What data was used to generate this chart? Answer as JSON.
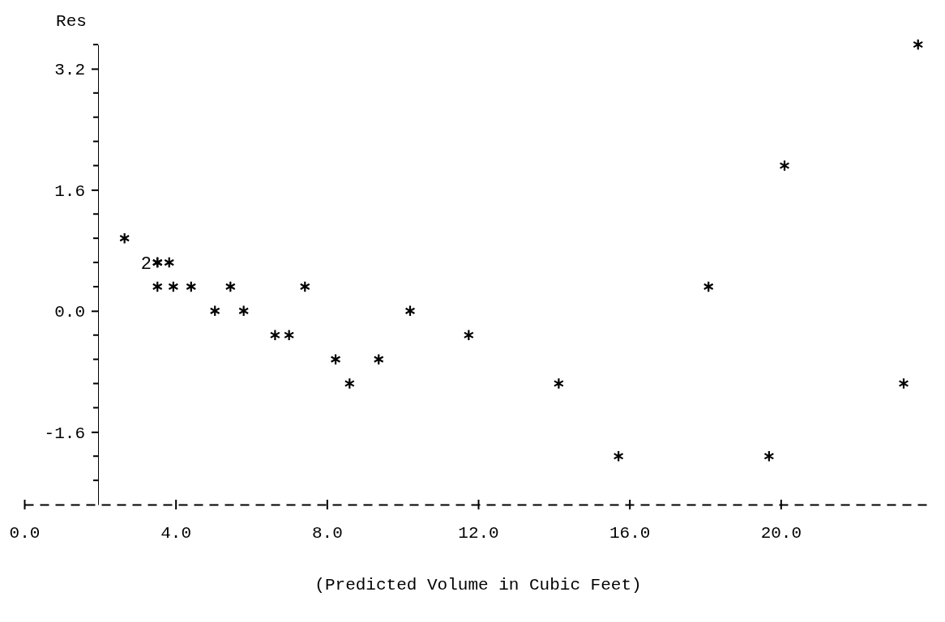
{
  "chart_data": {
    "type": "scatter",
    "ylabel": "Res",
    "xlabel": "(Predicted Volume in Cubic Feet)",
    "color": "#000000",
    "marker": "cross",
    "x": [
      2.65,
      3.52,
      3.52,
      3.83,
      3.52,
      3.94,
      4.41,
      5.45,
      7.42,
      18.09,
      5.04,
      5.8,
      10.2,
      6.63,
      7.0,
      11.75,
      8.23,
      9.37,
      8.6,
      14.13,
      23.25,
      15.71,
      19.69,
      20.1,
      23.63
    ],
    "values": [
      0.96,
      0.64,
      0.64,
      0.64,
      0.32,
      0.32,
      0.32,
      0.32,
      0.32,
      0.32,
      0,
      0,
      0,
      -0.32,
      -0.32,
      -0.32,
      -0.64,
      -0.64,
      -0.96,
      -0.96,
      -0.96,
      -1.92,
      -1.92,
      1.92,
      3.52
    ],
    "annotations": [
      {
        "text": "2",
        "x": 3.52,
        "y": 0.64
      }
    ],
    "xlim": [
      0,
      24
    ],
    "ylim": [
      -2.56,
      3.52
    ],
    "xticks": [
      {
        "value": 0,
        "label": "0.0"
      },
      {
        "value": 4,
        "label": "4.0"
      },
      {
        "value": 8,
        "label": "8.0"
      },
      {
        "value": 12,
        "label": "12.0"
      },
      {
        "value": 16,
        "label": "16.0"
      },
      {
        "value": 20,
        "label": "20.0"
      }
    ],
    "yticks": [
      {
        "value": 3.2,
        "label": "3.2"
      },
      {
        "value": 1.6,
        "label": "1.6"
      },
      {
        "value": 0,
        "label": "0.0"
      },
      {
        "value": -1.6,
        "label": "-1.6"
      }
    ]
  }
}
